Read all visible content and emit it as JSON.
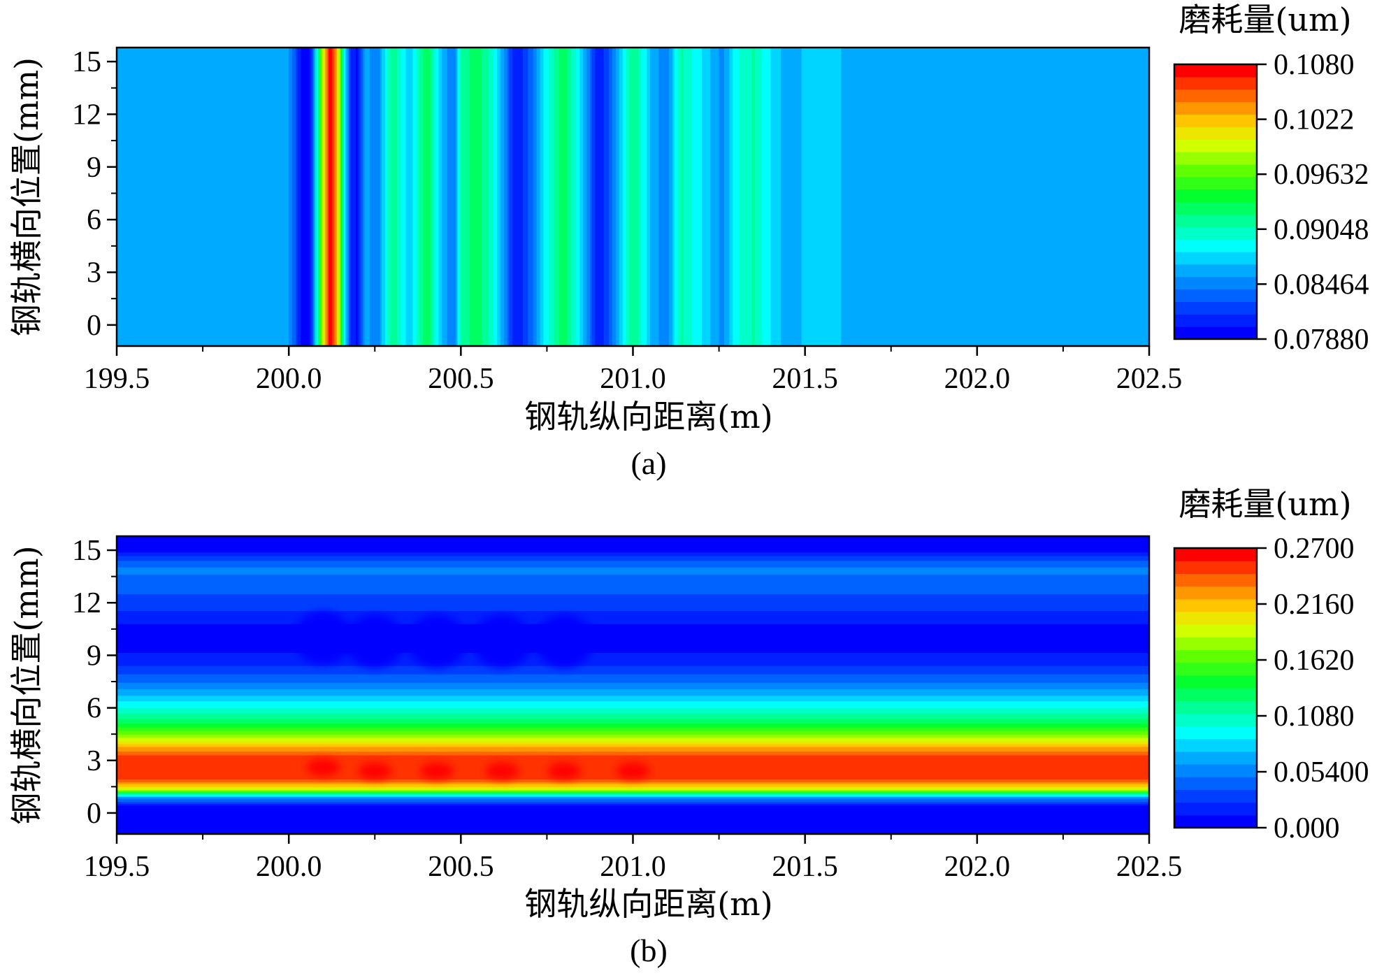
{
  "chart_data": [
    {
      "type": "heatmap",
      "panel_label": "(a)",
      "xlabel": "钢轨纵向距离(m)",
      "ylabel": "钢轨横向位置(mm)",
      "colorbar_title": "磨耗量(um)",
      "xlim": [
        199.5,
        202.5
      ],
      "ylim": [
        -1.2,
        15.8
      ],
      "x_ticks": [
        "199.5",
        "200.0",
        "200.5",
        "201.0",
        "201.5",
        "202.0",
        "202.5"
      ],
      "y_ticks": [
        "0",
        "3",
        "6",
        "9",
        "12",
        "15"
      ],
      "colorbar_ticks": [
        "0.07880",
        "0.08464",
        "0.09048",
        "0.09632",
        "0.1022",
        "0.1080"
      ],
      "clim": [
        0.0788,
        0.108
      ],
      "pattern": "vertical-bands",
      "baseline_value": 0.0855,
      "x": [
        199.5,
        200.0,
        200.02,
        200.04,
        200.06,
        200.08,
        200.1,
        200.12,
        200.14,
        200.16,
        200.18,
        200.2,
        200.22,
        200.26,
        200.3,
        200.35,
        200.4,
        200.45,
        200.48,
        200.5,
        200.55,
        200.6,
        200.66,
        200.7,
        200.74,
        200.8,
        200.86,
        200.9,
        200.94,
        201.0,
        201.06,
        201.1,
        201.14,
        201.2,
        201.26,
        201.3,
        201.35,
        201.4,
        201.45,
        201.5,
        201.55,
        201.6,
        201.62,
        202.5
      ],
      "values": [
        0.0855,
        0.0855,
        0.083,
        0.0788,
        0.0795,
        0.088,
        0.1,
        0.108,
        0.102,
        0.09,
        0.081,
        0.08,
        0.086,
        0.0845,
        0.092,
        0.087,
        0.0935,
        0.086,
        0.084,
        0.091,
        0.093,
        0.089,
        0.08,
        0.083,
        0.088,
        0.0935,
        0.086,
        0.08,
        0.084,
        0.092,
        0.086,
        0.0845,
        0.091,
        0.088,
        0.085,
        0.089,
        0.091,
        0.088,
        0.086,
        0.087,
        0.088,
        0.087,
        0.0855,
        0.0855
      ]
    },
    {
      "type": "heatmap",
      "panel_label": "(b)",
      "xlabel": "钢轨纵向距离(m)",
      "ylabel": "钢轨横向位置(mm)",
      "colorbar_title": "磨耗量(um)",
      "xlim": [
        199.5,
        202.5
      ],
      "ylim": [
        -1.2,
        15.8
      ],
      "x_ticks": [
        "199.5",
        "200.0",
        "200.5",
        "201.0",
        "201.5",
        "202.0",
        "202.5"
      ],
      "y_ticks": [
        "0",
        "3",
        "6",
        "9",
        "12",
        "15"
      ],
      "colorbar_ticks": [
        "0.000",
        "0.05400",
        "0.1080",
        "0.1620",
        "0.2160",
        "0.2700"
      ],
      "clim": [
        0.0,
        0.27
      ],
      "pattern": "horizontal-bands",
      "y": [
        -1.2,
        0.4,
        0.9,
        1.4,
        2.0,
        2.6,
        3.2,
        3.8,
        4.5,
        5.2,
        6.0,
        6.8,
        7.6,
        8.4,
        9.2,
        10.0,
        10.8,
        11.6,
        12.4,
        13.2,
        14.0,
        14.6,
        15.0,
        15.8
      ],
      "values": [
        0.005,
        0.008,
        0.06,
        0.2,
        0.25,
        0.255,
        0.25,
        0.22,
        0.17,
        0.13,
        0.1,
        0.07,
        0.045,
        0.025,
        0.012,
        0.008,
        0.012,
        0.025,
        0.035,
        0.048,
        0.05,
        0.03,
        0.008,
        0.005
      ],
      "hot_spots": [
        {
          "x": 200.1,
          "y": 2.6,
          "value": 0.265
        },
        {
          "x": 200.25,
          "y": 2.4,
          "value": 0.262
        },
        {
          "x": 200.43,
          "y": 2.4,
          "value": 0.262
        },
        {
          "x": 200.62,
          "y": 2.4,
          "value": 0.262
        },
        {
          "x": 200.8,
          "y": 2.4,
          "value": 0.26
        },
        {
          "x": 201.0,
          "y": 2.4,
          "value": 0.258
        }
      ],
      "cold_spots": [
        {
          "x": 200.1,
          "y": 10.0,
          "value": 0.002
        },
        {
          "x": 200.25,
          "y": 9.8,
          "value": 0.002
        },
        {
          "x": 200.43,
          "y": 9.8,
          "value": 0.002
        },
        {
          "x": 200.62,
          "y": 9.8,
          "value": 0.003
        },
        {
          "x": 200.8,
          "y": 9.8,
          "value": 0.004
        }
      ]
    }
  ]
}
